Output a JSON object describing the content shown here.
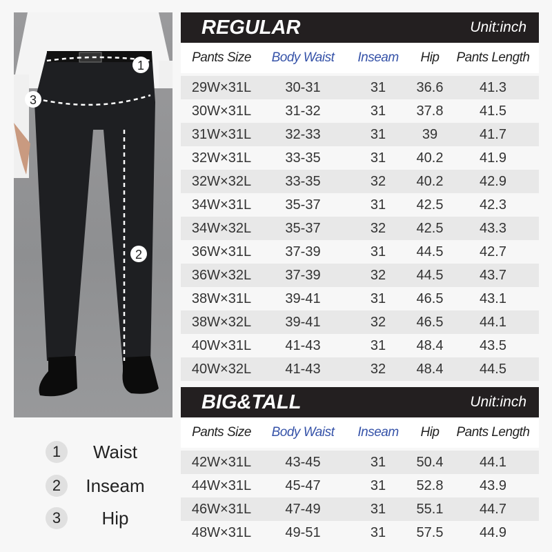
{
  "measure_legend": [
    {
      "num": "1",
      "label": "Waist"
    },
    {
      "num": "2",
      "label": "Inseam"
    },
    {
      "num": "3",
      "label": "Hip"
    }
  ],
  "photo_markers": {
    "waist": "1",
    "inseam": "2",
    "hip": "3"
  },
  "columns": [
    "Pants Size",
    "Body Waist",
    "Inseam",
    "Hip",
    "Pants Length"
  ],
  "colors": {
    "header_bar": "#231f20",
    "blue_header": "#3552a8",
    "row_shade": "#e8e8e8"
  },
  "regular": {
    "title": "REGULAR",
    "unit": "Unit:inch",
    "rows": [
      [
        "29W×31L",
        "30-31",
        "31",
        "36.6",
        "41.3"
      ],
      [
        "30W×31L",
        "31-32",
        "31",
        "37.8",
        "41.5"
      ],
      [
        "31W×31L",
        "32-33",
        "31",
        "39",
        "41.7"
      ],
      [
        "32W×31L",
        "33-35",
        "31",
        "40.2",
        "41.9"
      ],
      [
        "32W×32L",
        "33-35",
        "32",
        "40.2",
        "42.9"
      ],
      [
        "34W×31L",
        "35-37",
        "31",
        "42.5",
        "42.3"
      ],
      [
        "34W×32L",
        "35-37",
        "32",
        "42.5",
        "43.3"
      ],
      [
        "36W×31L",
        "37-39",
        "31",
        "44.5",
        "42.7"
      ],
      [
        "36W×32L",
        "37-39",
        "32",
        "44.5",
        "43.7"
      ],
      [
        "38W×31L",
        "39-41",
        "31",
        "46.5",
        "43.1"
      ],
      [
        "38W×32L",
        "39-41",
        "32",
        "46.5",
        "44.1"
      ],
      [
        "40W×31L",
        "41-43",
        "31",
        "48.4",
        "43.5"
      ],
      [
        "40W×32L",
        "41-43",
        "32",
        "48.4",
        "44.5"
      ]
    ]
  },
  "big_tall": {
    "title": "BIG&TALL",
    "unit": "Unit:inch",
    "rows": [
      [
        "42W×31L",
        "43-45",
        "31",
        "50.4",
        "44.1"
      ],
      [
        "44W×31L",
        "45-47",
        "31",
        "52.8",
        "43.9"
      ],
      [
        "46W×31L",
        "47-49",
        "31",
        "55.1",
        "44.7"
      ],
      [
        "48W×31L",
        "49-51",
        "31",
        "57.5",
        "44.9"
      ]
    ]
  }
}
